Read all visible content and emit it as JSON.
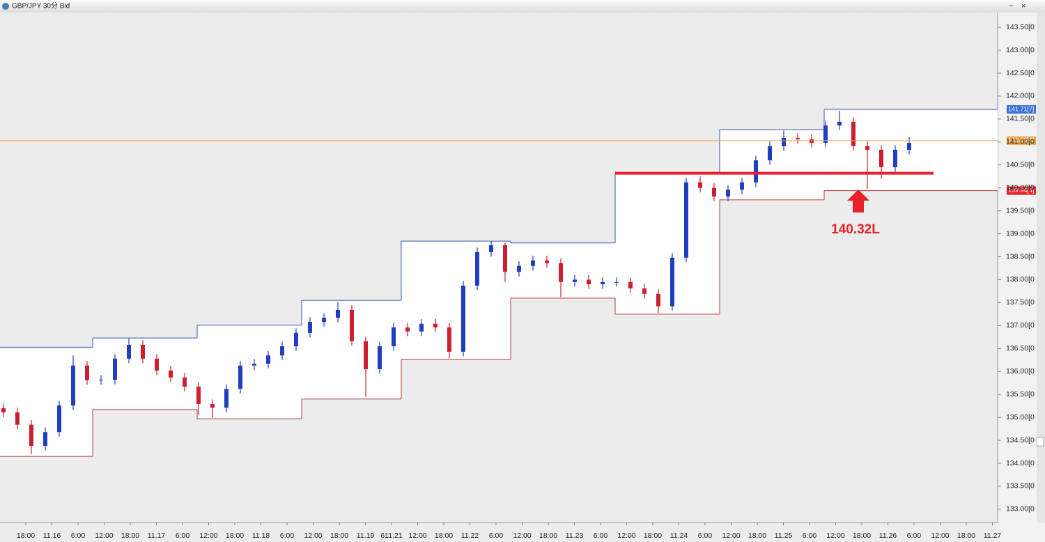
{
  "window_title": "GBP/JPY 30分 Bid",
  "chart_data": {
    "type": "candlestick",
    "ylim": [
      132.71,
      143.82
    ],
    "yticks": [
      {
        "value": 143.5,
        "label": "143.50[0"
      },
      {
        "value": 143.0,
        "label": "143.00[0"
      },
      {
        "value": 142.5,
        "label": "142.50[0"
      },
      {
        "value": 142.0,
        "label": "142.00[0"
      },
      {
        "value": 141.5,
        "label": "141.50[0"
      },
      {
        "value": 141.0,
        "label": "141.00[0"
      },
      {
        "value": 140.5,
        "label": "140.50[0"
      },
      {
        "value": 140.0,
        "label": "140.00[0"
      },
      {
        "value": 139.5,
        "label": "139.50[0"
      },
      {
        "value": 139.0,
        "label": "139.00[0"
      },
      {
        "value": 138.5,
        "label": "138.50[0"
      },
      {
        "value": 138.0,
        "label": "138.00[0"
      },
      {
        "value": 137.5,
        "label": "137.50[0"
      },
      {
        "value": 137.0,
        "label": "137.00[0"
      },
      {
        "value": 136.5,
        "label": "136.50[0"
      },
      {
        "value": 136.0,
        "label": "136.00[0"
      },
      {
        "value": 135.5,
        "label": "135.50[0"
      },
      {
        "value": 135.0,
        "label": "135.00[0"
      },
      {
        "value": 134.5,
        "label": "134.50[0"
      },
      {
        "value": 134.0,
        "label": "134.00[0"
      },
      {
        "value": 133.5,
        "label": "133.50[0"
      },
      {
        "value": 133.0,
        "label": "133.00[0"
      }
    ],
    "x_labels": [
      "18:00",
      "11.16",
      "6:00",
      "12:00",
      "18:00",
      "11.17",
      "6:00",
      "12:00",
      "18:00",
      "11.18",
      "6:00",
      "12:00",
      "18:00",
      "11.19",
      "611.21",
      "12:00",
      "18:00",
      "11.22",
      "6:00",
      "12:00",
      "18:00",
      "11.23",
      "6:00",
      "12:00",
      "18:00",
      "11.24",
      "6:00",
      "12:00",
      "18:00",
      "11.25",
      "6:00",
      "12:00",
      "18:00",
      "11.26",
      "6:00",
      "12:00",
      "18:00",
      "11.27"
    ],
    "up_color": "#1f3fbf",
    "down_color": "#cc1f2f",
    "open": [
      135.2,
      135.11,
      134.84,
      134.38,
      134.68,
      135.26,
      136.13,
      135.81,
      135.82,
      136.28,
      136.58,
      136.28,
      136.02,
      135.87,
      135.67,
      135.29,
      135.21,
      135.62,
      136.13,
      136.17,
      136.35,
      136.55,
      136.84,
      137.08,
      137.17,
      137.34,
      136.66,
      136.05,
      136.55,
      136.96,
      136.87,
      137.04,
      136.96,
      136.43,
      137.87,
      138.6,
      138.75,
      138.17,
      138.3,
      138.42,
      138.36,
      137.95,
      138.0,
      137.9,
      137.95,
      137.95,
      137.81,
      137.69,
      137.42,
      138.48,
      140.12,
      140.0,
      139.81,
      139.96,
      140.12,
      140.6,
      140.91,
      141.09,
      141.06,
      140.98,
      141.36,
      141.44,
      140.91,
      140.83,
      140.45,
      140.83
    ],
    "high": [
      135.3,
      135.21,
      134.94,
      134.78,
      135.36,
      136.35,
      136.23,
      135.92,
      136.38,
      136.72,
      136.68,
      136.38,
      136.12,
      135.97,
      135.77,
      135.39,
      135.72,
      136.23,
      136.27,
      136.45,
      136.65,
      136.94,
      137.18,
      137.27,
      137.52,
      137.44,
      136.76,
      136.65,
      137.06,
      137.06,
      137.14,
      137.14,
      137.06,
      137.97,
      138.7,
      138.84,
      138.8,
      138.4,
      138.52,
      138.52,
      138.46,
      138.1,
      138.1,
      138.05,
      138.05,
      138.05,
      137.91,
      137.79,
      138.58,
      140.22,
      140.25,
      140.1,
      140.06,
      140.22,
      140.7,
      141.01,
      141.25,
      141.19,
      141.16,
      141.46,
      141.68,
      141.54,
      141.01,
      140.93,
      140.93,
      141.1
    ],
    "low": [
      135.01,
      134.74,
      134.2,
      134.28,
      134.58,
      135.16,
      135.71,
      135.71,
      135.72,
      136.18,
      136.18,
      135.92,
      135.77,
      135.57,
      135.05,
      135.0,
      135.11,
      135.52,
      136.03,
      136.07,
      136.25,
      136.45,
      136.74,
      136.98,
      137.07,
      136.56,
      135.45,
      135.95,
      136.45,
      136.77,
      136.77,
      136.86,
      136.28,
      136.33,
      137.77,
      138.5,
      137.95,
      138.07,
      138.2,
      138.26,
      137.62,
      137.85,
      137.8,
      137.8,
      137.85,
      137.71,
      137.59,
      137.28,
      137.32,
      138.38,
      139.9,
      139.71,
      139.71,
      139.86,
      140.02,
      140.5,
      140.81,
      140.96,
      140.88,
      140.88,
      141.26,
      140.81,
      139.98,
      140.2,
      140.35,
      140.73
    ],
    "close": [
      135.11,
      134.84,
      134.38,
      134.68,
      135.26,
      136.13,
      135.81,
      135.82,
      136.28,
      136.58,
      136.28,
      136.02,
      135.87,
      135.67,
      135.29,
      135.21,
      135.62,
      136.13,
      136.17,
      136.35,
      136.55,
      136.84,
      137.08,
      137.17,
      137.34,
      136.66,
      136.05,
      136.55,
      136.96,
      136.87,
      137.04,
      136.96,
      136.43,
      137.87,
      138.6,
      138.75,
      138.17,
      138.3,
      138.42,
      138.36,
      137.95,
      138.0,
      137.9,
      137.95,
      137.95,
      137.81,
      137.69,
      137.42,
      138.48,
      140.12,
      140.0,
      139.81,
      139.96,
      140.12,
      140.6,
      140.91,
      141.09,
      141.06,
      140.98,
      141.36,
      141.44,
      140.91,
      140.83,
      140.45,
      140.83,
      140.98
    ],
    "range_high": [
      136.53,
      136.73,
      137.01,
      137.55,
      138.84,
      138.8,
      140.3,
      141.27,
      141.71
    ],
    "range_low": [
      134.15,
      135.17,
      134.97,
      135.4,
      136.26,
      137.6,
      137.25,
      139.74,
      139.94
    ],
    "range_high_color": "#3553b5",
    "range_low_color": "#b03a3a",
    "range_high_label": "141.71[7]",
    "range_low_label": "139.94[4]",
    "current": 141.03,
    "current_label": "141.03[6]",
    "current_color": "#f0a040",
    "support": 140.32,
    "support_color": "#e8202a",
    "annotation": "140.32L"
  }
}
